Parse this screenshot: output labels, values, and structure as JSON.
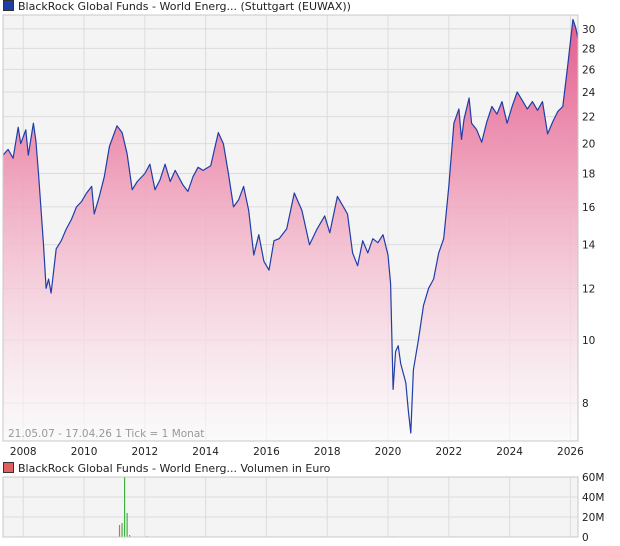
{
  "colors": {
    "price_line": "#1f3ea8",
    "price_fill_top": "#e35d8f",
    "price_fill_bottom": "#ffffff",
    "volume_bar": "#e06060",
    "volume_bar_alt": "#40b040",
    "grid": "#dcdcdc",
    "panel_bg": "#f4f4f4"
  },
  "legend": {
    "price": {
      "label": "BlackRock Global Funds - World Energ... (Stuttgart (EUWAX))",
      "swatch_color": "#1f3ea8"
    },
    "volume": {
      "label": "BlackRock Global Funds - World Energ... Volumen in Euro",
      "swatch_color": "#e06060"
    }
  },
  "footer_note": "21.05.07 - 17.04.26   1 Tick = 1 Monat",
  "chart_data": [
    {
      "type": "area",
      "name": "price",
      "y_scale": "log",
      "x_range": [
        "2007-05",
        "2026-04"
      ],
      "ylim": [
        7,
        31.5
      ],
      "y_ticks": [
        "8",
        "10",
        "12",
        "14",
        "16",
        "18",
        "20",
        "22",
        "24",
        "26",
        "28",
        "30"
      ],
      "x_ticks": [
        "2008",
        "2010",
        "2012",
        "2014",
        "2016",
        "2018",
        "2020",
        "2022",
        "2024",
        "2026"
      ],
      "grid": true,
      "points": [
        [
          "2007-05",
          19.2
        ],
        [
          "2007-07",
          19.6
        ],
        [
          "2007-09",
          19.0
        ],
        [
          "2007-11",
          21.2
        ],
        [
          "2007-12",
          20.0
        ],
        [
          "2008-02",
          21.0
        ],
        [
          "2008-03",
          19.2
        ],
        [
          "2008-05",
          21.5
        ],
        [
          "2008-06",
          20.2
        ],
        [
          "2008-07",
          18.0
        ],
        [
          "2008-09",
          14.0
        ],
        [
          "2008-10",
          12.0
        ],
        [
          "2008-11",
          12.4
        ],
        [
          "2008-12",
          11.8
        ],
        [
          "2009-02",
          13.8
        ],
        [
          "2009-04",
          14.2
        ],
        [
          "2009-06",
          14.8
        ],
        [
          "2009-08",
          15.3
        ],
        [
          "2009-10",
          16.0
        ],
        [
          "2009-12",
          16.3
        ],
        [
          "2010-02",
          16.8
        ],
        [
          "2010-04",
          17.2
        ],
        [
          "2010-05",
          15.6
        ],
        [
          "2010-07",
          16.6
        ],
        [
          "2010-09",
          17.8
        ],
        [
          "2010-11",
          19.8
        ],
        [
          "2011-02",
          21.3
        ],
        [
          "2011-04",
          20.8
        ],
        [
          "2011-06",
          19.3
        ],
        [
          "2011-08",
          17.0
        ],
        [
          "2011-10",
          17.5
        ],
        [
          "2012-01",
          18.0
        ],
        [
          "2012-03",
          18.6
        ],
        [
          "2012-05",
          17.0
        ],
        [
          "2012-07",
          17.6
        ],
        [
          "2012-09",
          18.6
        ],
        [
          "2012-11",
          17.5
        ],
        [
          "2013-01",
          18.2
        ],
        [
          "2013-04",
          17.3
        ],
        [
          "2013-06",
          16.9
        ],
        [
          "2013-08",
          17.8
        ],
        [
          "2013-10",
          18.4
        ],
        [
          "2013-12",
          18.2
        ],
        [
          "2014-03",
          18.5
        ],
        [
          "2014-06",
          20.8
        ],
        [
          "2014-08",
          20.0
        ],
        [
          "2014-10",
          18.0
        ],
        [
          "2014-12",
          16.0
        ],
        [
          "2015-02",
          16.4
        ],
        [
          "2015-04",
          17.2
        ],
        [
          "2015-06",
          15.8
        ],
        [
          "2015-08",
          13.5
        ],
        [
          "2015-10",
          14.5
        ],
        [
          "2015-12",
          13.2
        ],
        [
          "2016-02",
          12.8
        ],
        [
          "2016-04",
          14.2
        ],
        [
          "2016-06",
          14.3
        ],
        [
          "2016-09",
          14.8
        ],
        [
          "2016-12",
          16.8
        ],
        [
          "2017-03",
          15.8
        ],
        [
          "2017-06",
          14.0
        ],
        [
          "2017-09",
          14.8
        ],
        [
          "2017-12",
          15.5
        ],
        [
          "2018-02",
          14.6
        ],
        [
          "2018-05",
          16.6
        ],
        [
          "2018-07",
          16.1
        ],
        [
          "2018-09",
          15.6
        ],
        [
          "2018-11",
          13.6
        ],
        [
          "2019-01",
          13.0
        ],
        [
          "2019-03",
          14.2
        ],
        [
          "2019-05",
          13.6
        ],
        [
          "2019-07",
          14.3
        ],
        [
          "2019-09",
          14.1
        ],
        [
          "2019-11",
          14.5
        ],
        [
          "2020-01",
          13.5
        ],
        [
          "2020-02",
          12.2
        ],
        [
          "2020-03",
          8.4
        ],
        [
          "2020-04",
          9.6
        ],
        [
          "2020-05",
          9.8
        ],
        [
          "2020-06",
          9.2
        ],
        [
          "2020-08",
          8.6
        ],
        [
          "2020-09",
          7.8
        ],
        [
          "2020-10",
          7.2
        ],
        [
          "2020-11",
          9.0
        ],
        [
          "2021-01",
          10.0
        ],
        [
          "2021-03",
          11.3
        ],
        [
          "2021-05",
          12.0
        ],
        [
          "2021-07",
          12.4
        ],
        [
          "2021-09",
          13.6
        ],
        [
          "2021-11",
          14.3
        ],
        [
          "2022-01",
          17.2
        ],
        [
          "2022-03",
          21.5
        ],
        [
          "2022-05",
          22.6
        ],
        [
          "2022-06",
          20.3
        ],
        [
          "2022-07",
          21.8
        ],
        [
          "2022-09",
          23.5
        ],
        [
          "2022-10",
          21.5
        ],
        [
          "2022-12",
          21.0
        ],
        [
          "2023-02",
          20.1
        ],
        [
          "2023-04",
          21.6
        ],
        [
          "2023-06",
          22.8
        ],
        [
          "2023-08",
          22.2
        ],
        [
          "2023-10",
          23.2
        ],
        [
          "2023-12",
          21.5
        ],
        [
          "2024-02",
          22.8
        ],
        [
          "2024-04",
          24.0
        ],
        [
          "2024-06",
          23.3
        ],
        [
          "2024-08",
          22.6
        ],
        [
          "2024-10",
          23.2
        ],
        [
          "2024-12",
          22.5
        ],
        [
          "2025-02",
          23.2
        ],
        [
          "2025-04",
          20.7
        ],
        [
          "2025-06",
          21.6
        ],
        [
          "2025-08",
          22.4
        ],
        [
          "2025-10",
          22.8
        ],
        [
          "2025-12",
          26.5
        ],
        [
          "2026-02",
          31.0
        ],
        [
          "2026-03",
          30.2
        ],
        [
          "2026-04",
          29.0
        ]
      ]
    },
    {
      "type": "bar",
      "name": "volume",
      "ylim": [
        0,
        60000000
      ],
      "y_ticks": [
        "0",
        "20M",
        "40M",
        "60M"
      ],
      "y_tick_values": [
        0,
        20000000,
        40000000,
        60000000
      ],
      "grid": true,
      "bars": [
        [
          "2008-03",
          300000,
          "red"
        ],
        [
          "2009-07",
          400000,
          "green"
        ],
        [
          "2010-02",
          250000,
          "red"
        ],
        [
          "2010-08",
          500000,
          "green"
        ],
        [
          "2011-01",
          350000,
          "red"
        ],
        [
          "2011-03",
          12000000,
          "red"
        ],
        [
          "2011-04",
          14000000,
          "green"
        ],
        [
          "2011-05",
          60000000,
          "green"
        ],
        [
          "2011-06",
          24000000,
          "green"
        ],
        [
          "2011-07",
          2000000,
          "red"
        ],
        [
          "2012-02",
          800000,
          "green"
        ],
        [
          "2013-05",
          400000,
          "red"
        ],
        [
          "2014-09",
          500000,
          "green"
        ],
        [
          "2015-03",
          300000,
          "red"
        ],
        [
          "2016-06",
          450000,
          "green"
        ],
        [
          "2017-10",
          300000,
          "red"
        ],
        [
          "2018-04",
          350000,
          "green"
        ],
        [
          "2019-08",
          300000,
          "red"
        ],
        [
          "2020-03",
          600000,
          "green"
        ],
        [
          "2021-06",
          350000,
          "red"
        ],
        [
          "2022-05",
          500000,
          "green"
        ],
        [
          "2023-09",
          300000,
          "red"
        ],
        [
          "2024-11",
          400000,
          "green"
        ],
        [
          "2025-07",
          350000,
          "red"
        ]
      ]
    }
  ]
}
